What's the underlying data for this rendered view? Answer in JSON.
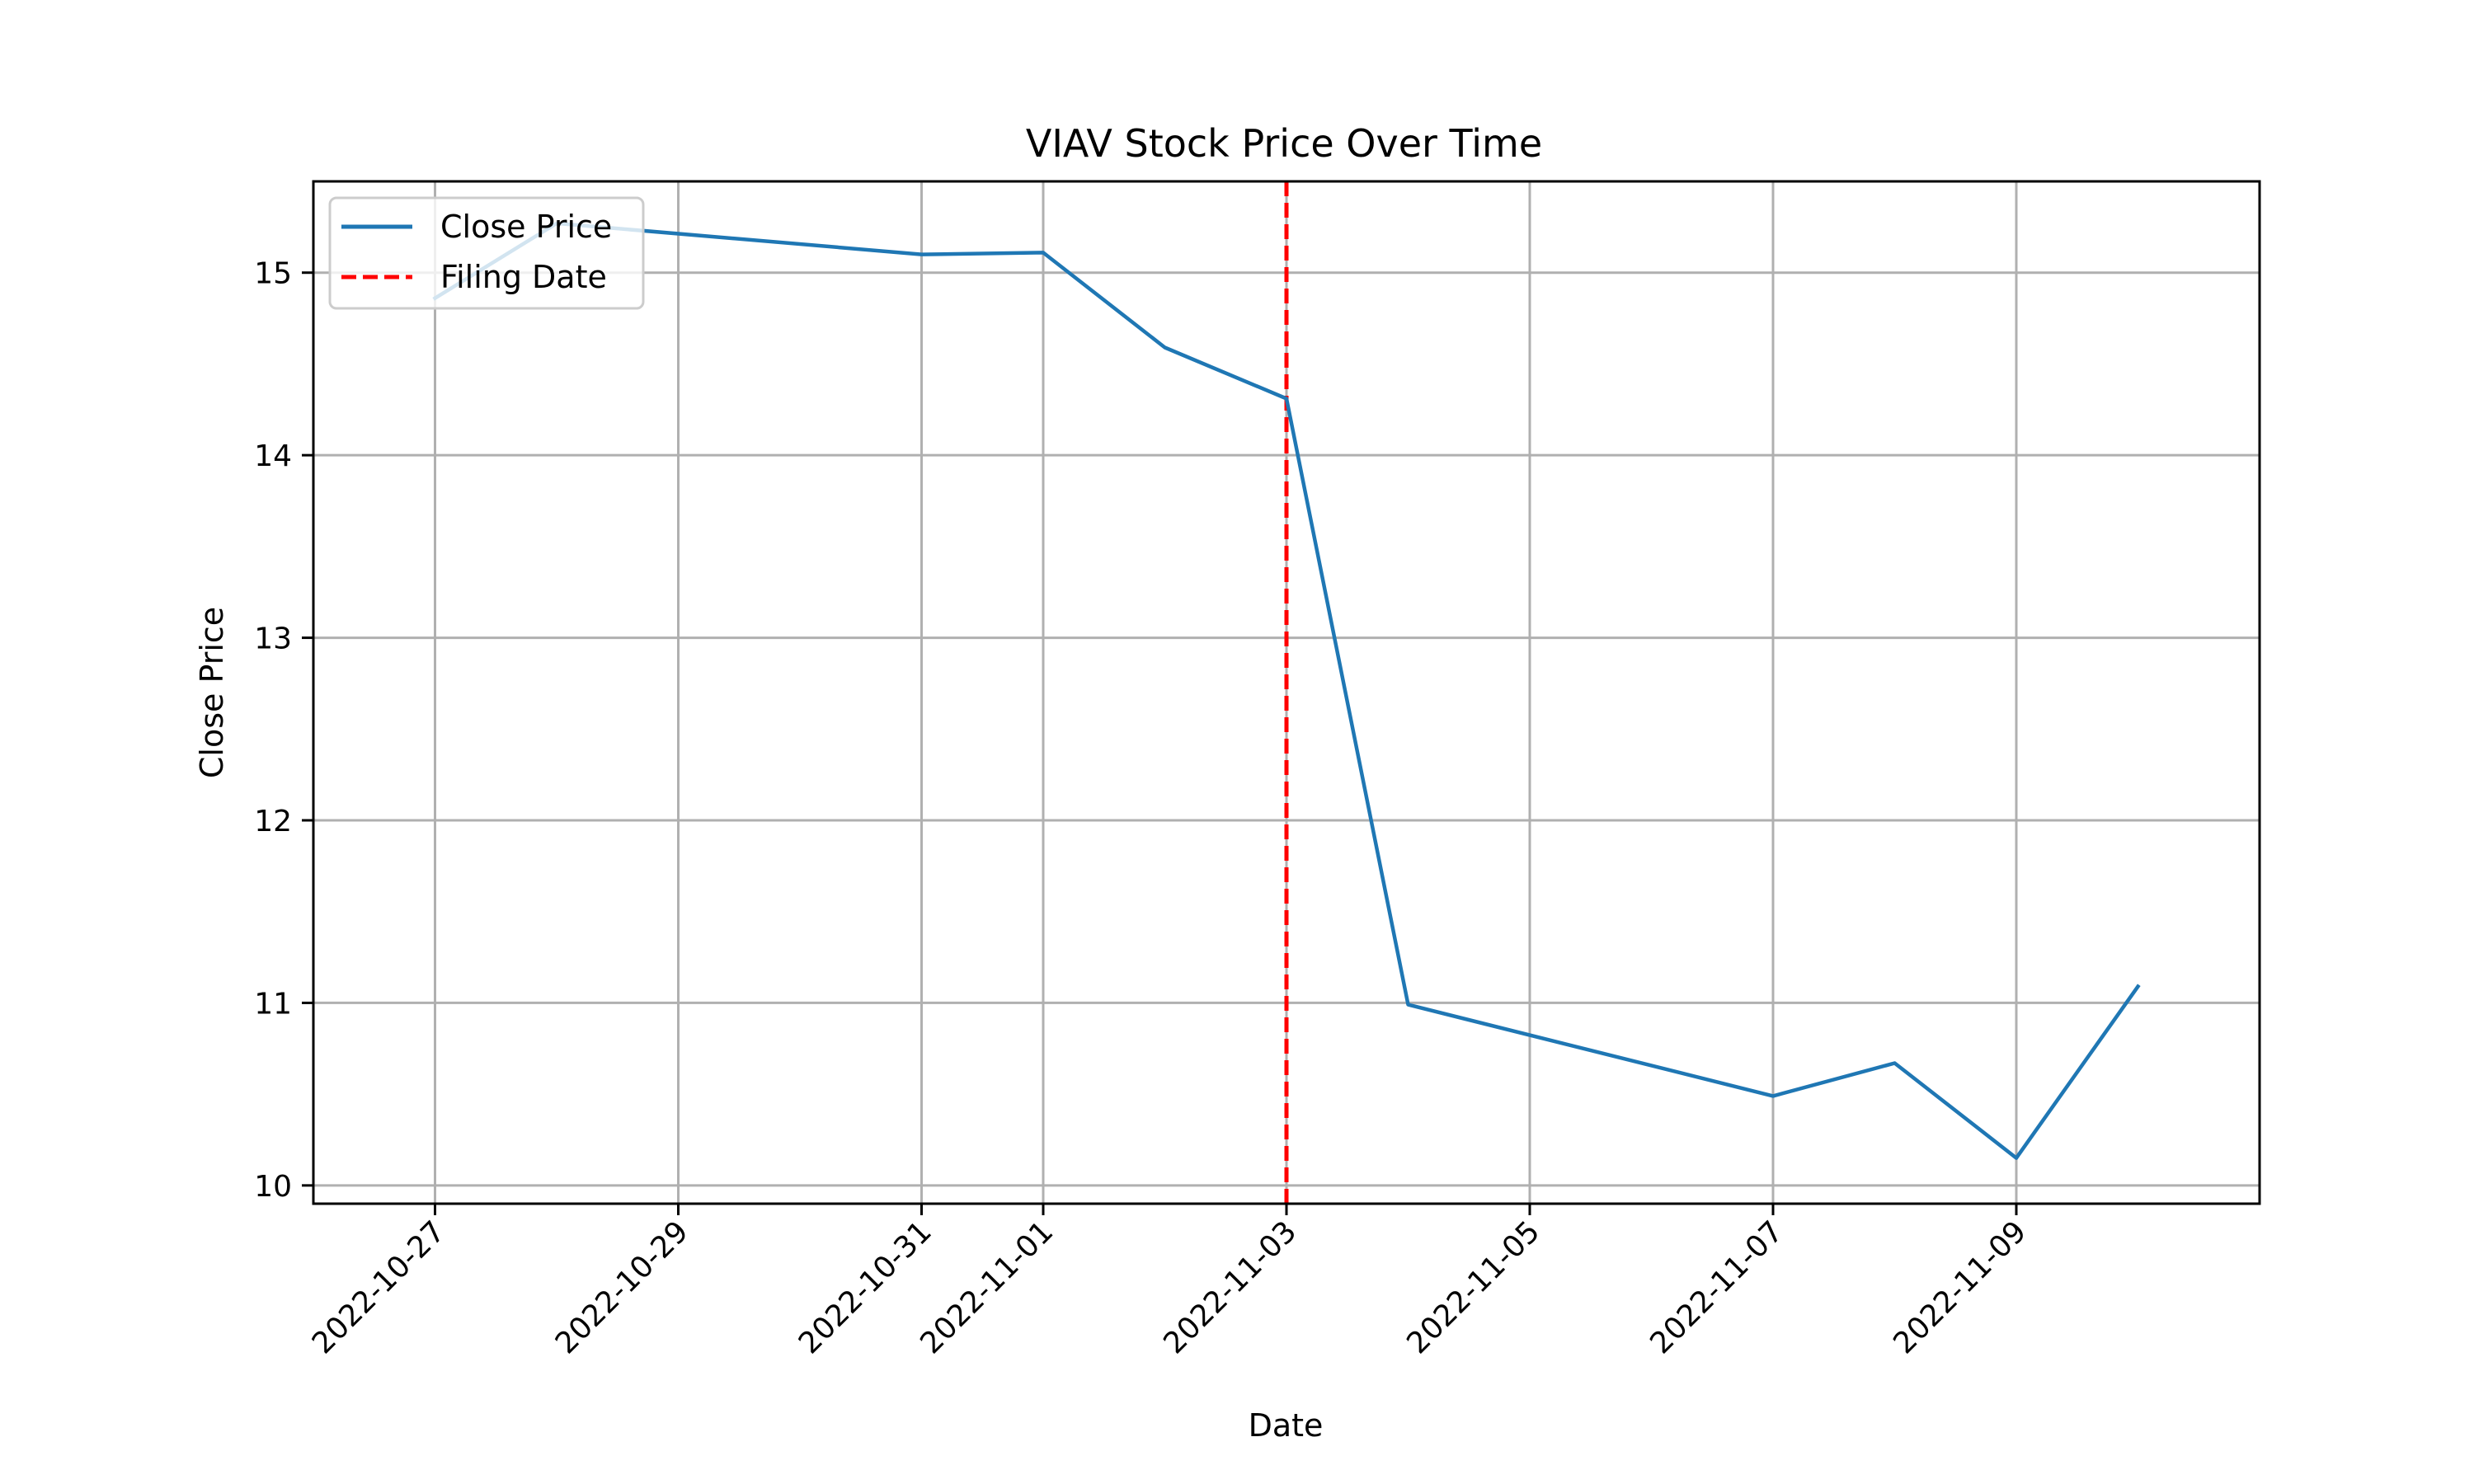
{
  "chart_data": {
    "type": "line",
    "title": "VIAV Stock Price Over Time",
    "xlabel": "Date",
    "ylabel": "Close Price",
    "x_tick_labels": [
      "2022-10-27",
      "2022-10-29",
      "2022-10-31",
      "2022-11-01",
      "2022-11-03",
      "2022-11-05",
      "2022-11-07",
      "2022-11-09"
    ],
    "y_ticks": [
      10,
      11,
      12,
      13,
      14,
      15
    ],
    "xlim": [
      "2022-10-26",
      "2022-11-11"
    ],
    "ylim": [
      9.9,
      15.5
    ],
    "grid": true,
    "legend_position": "upper-left",
    "series": [
      {
        "name": "Close Price",
        "color": "#1f77b4",
        "style": "solid",
        "x": [
          "2022-10-27",
          "2022-10-28",
          "2022-10-31",
          "2022-11-01",
          "2022-11-02",
          "2022-11-03",
          "2022-11-04",
          "2022-11-07",
          "2022-11-08",
          "2022-11-09",
          "2022-11-10"
        ],
        "y": [
          14.86,
          15.27,
          15.1,
          15.11,
          14.59,
          14.31,
          10.99,
          10.49,
          10.67,
          10.15,
          11.09
        ]
      }
    ],
    "vlines": [
      {
        "name": "Filing Date",
        "x": "2022-11-03",
        "color": "#ff0000",
        "style": "dashed"
      }
    ]
  }
}
